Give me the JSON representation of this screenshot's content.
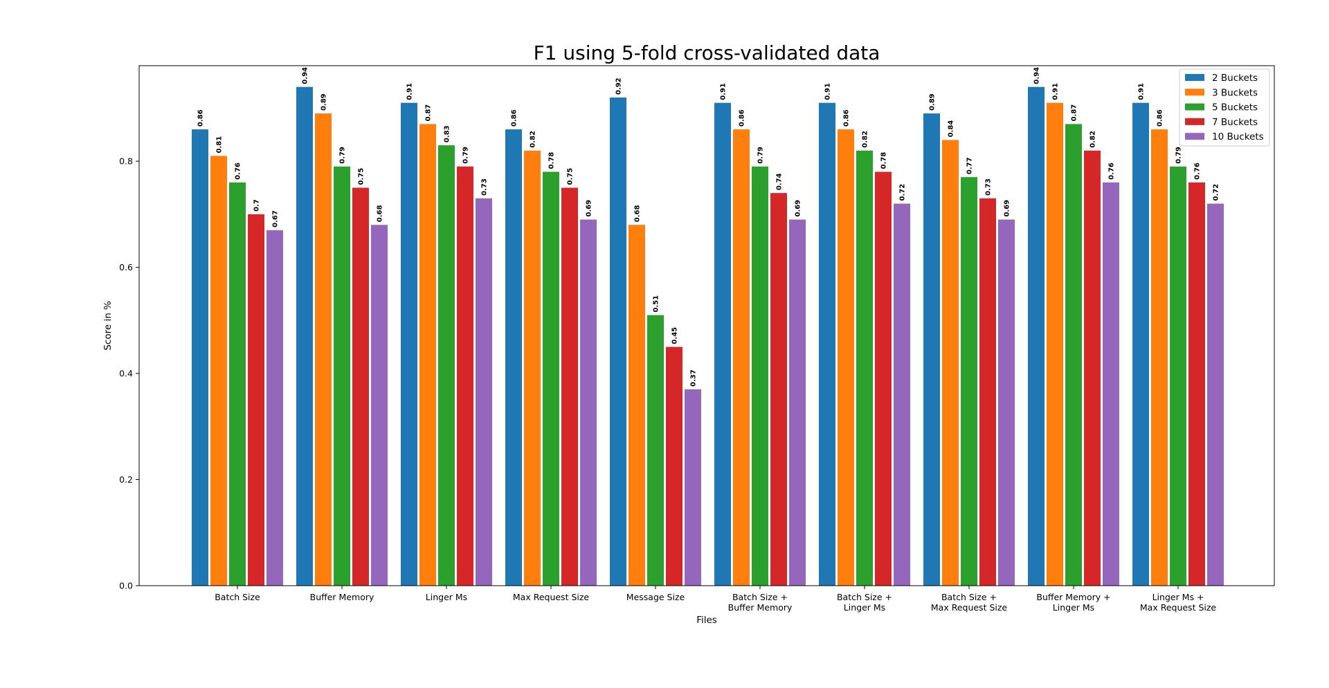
{
  "chart_data": {
    "type": "bar",
    "title": "F1 using 5-fold cross-validated data",
    "xlabel": "Files",
    "ylabel": "Score in %",
    "ylim": [
      0,
      0.98
    ],
    "yticks": [
      "0.0",
      "0.2",
      "0.4",
      "0.6",
      "0.8"
    ],
    "grid": false,
    "legend_position": "top-right",
    "categories": [
      [
        "Batch Size"
      ],
      [
        "Buffer Memory"
      ],
      [
        "Linger Ms"
      ],
      [
        "Max Request Size"
      ],
      [
        "Message Size"
      ],
      [
        "Batch Size +",
        "Buffer Memory"
      ],
      [
        "Batch Size +",
        "Linger Ms"
      ],
      [
        "Batch Size +",
        "Max Request Size"
      ],
      [
        "Buffer Memory +",
        "Linger Ms"
      ],
      [
        "Linger Ms +",
        "Max Request Size"
      ]
    ],
    "series": [
      {
        "name": "2 Buckets",
        "color": "#1f77b4",
        "values": [
          0.86,
          0.94,
          0.91,
          0.86,
          0.92,
          0.91,
          0.91,
          0.89,
          0.94,
          0.91
        ],
        "labels": [
          "0.86",
          "0.94",
          "0.91",
          "0.86",
          "0.92",
          "0.91",
          "0.91",
          "0.89",
          "0.94",
          "0.91"
        ]
      },
      {
        "name": "3 Buckets",
        "color": "#ff7f0e",
        "values": [
          0.81,
          0.89,
          0.87,
          0.82,
          0.68,
          0.86,
          0.86,
          0.84,
          0.91,
          0.86
        ],
        "labels": [
          "0.81",
          "0.89",
          "0.87",
          "0.82",
          "0.68",
          "0.86",
          "0.86",
          "0.84",
          "0.91",
          "0.86"
        ]
      },
      {
        "name": "5 Buckets",
        "color": "#2ca02c",
        "values": [
          0.76,
          0.79,
          0.83,
          0.78,
          0.51,
          0.79,
          0.82,
          0.77,
          0.87,
          0.79
        ],
        "labels": [
          "0.76",
          "0.79",
          "0.83",
          "0.78",
          "0.51",
          "0.79",
          "0.82",
          "0.77",
          "0.87",
          "0.79"
        ]
      },
      {
        "name": "7 Buckets",
        "color": "#d62728",
        "values": [
          0.7,
          0.75,
          0.79,
          0.75,
          0.45,
          0.74,
          0.78,
          0.73,
          0.82,
          0.76
        ],
        "labels": [
          "0.7",
          "0.75",
          "0.79",
          "0.75",
          "0.45",
          "0.74",
          "0.78",
          "0.73",
          "0.82",
          "0.76"
        ]
      },
      {
        "name": "10 Buckets",
        "color": "#9467bd",
        "values": [
          0.67,
          0.68,
          0.73,
          0.69,
          0.37,
          0.69,
          0.72,
          0.69,
          0.76,
          0.72
        ],
        "labels": [
          "0.67",
          "0.68",
          "0.73",
          "0.69",
          "0.37",
          "0.69",
          "0.72",
          "0.69",
          "0.76",
          "0.72"
        ]
      }
    ]
  }
}
